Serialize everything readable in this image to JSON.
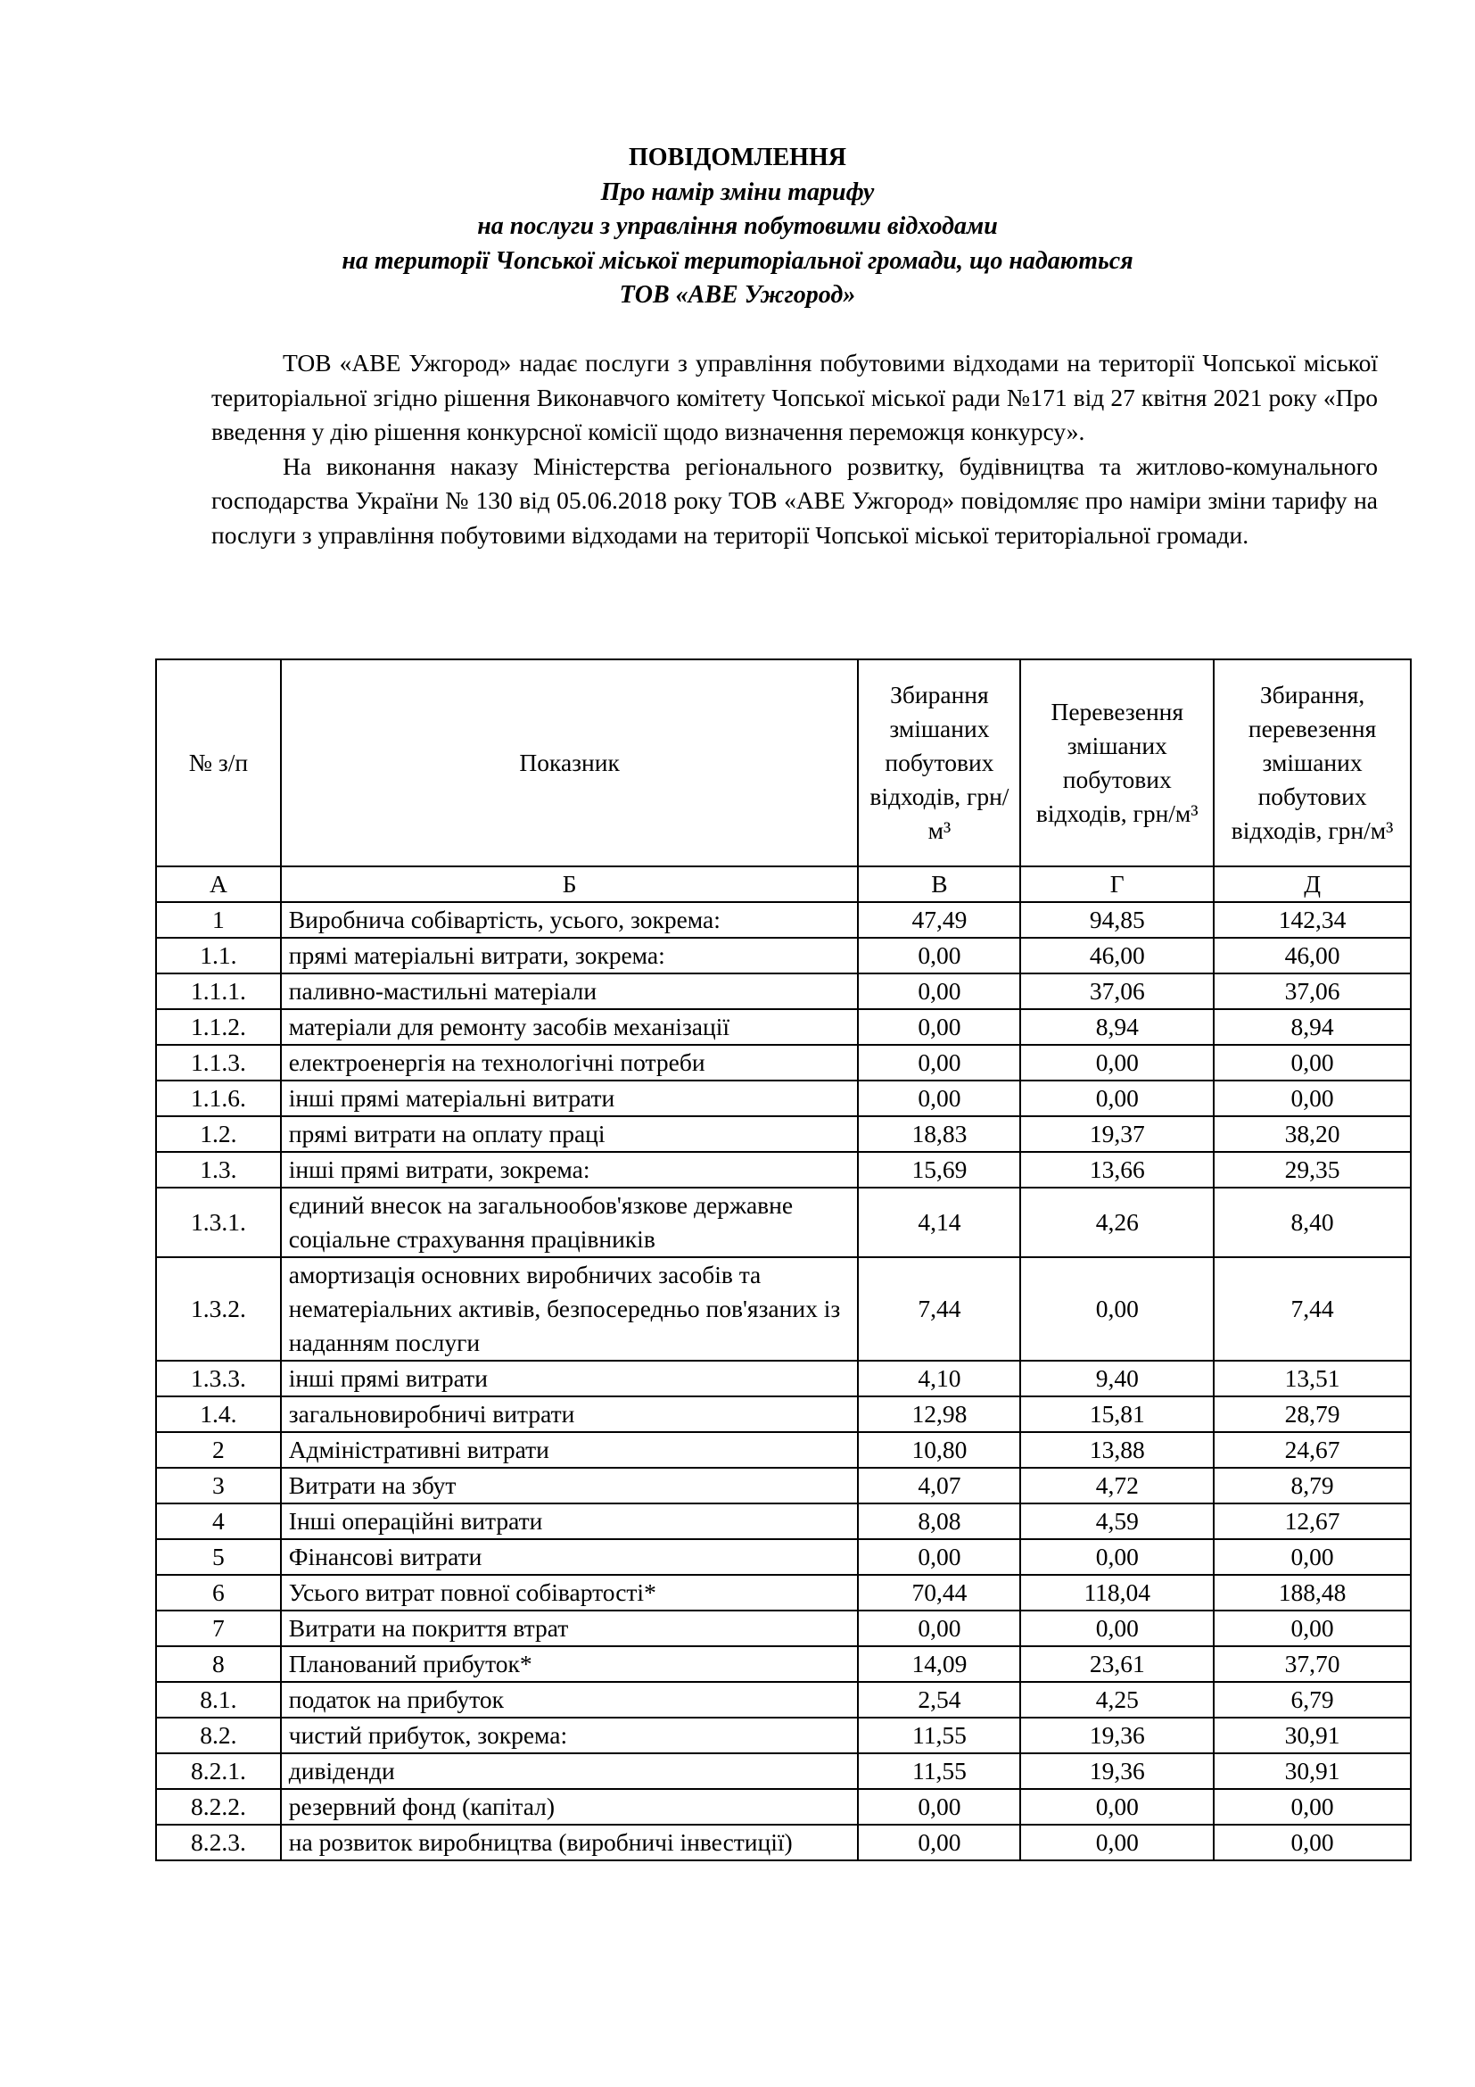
{
  "header": {
    "title": "ПОВІДОМЛЕННЯ",
    "subtitle_lines": [
      "Про намір зміни тарифу",
      "на послуги з управління побутовими відходами",
      "на території Чопської міської територіальної громади, що надаються",
      "ТОВ «АВЕ Ужгород»"
    ]
  },
  "paragraphs": [
    "ТОВ «АВЕ Ужгород» надає послуги з управління побутовими відходами на території Чопської міської територіальної  згідно рішення Виконавчого комітету Чопської міської ради №171  від 27 квітня 2021 року «Про введення у дію рішення конкурсної комісії щодо визначення переможця конкурсу».",
    "На виконання наказу Міністерства регіонального розвитку, будівництва та житлово-комунального господарства України № 130 від 05.06.2018 року ТОВ «АВЕ Ужгород» повідомляє про наміри зміни тарифу на послуги з управління побутовими відходами на території Чопської міської територіальної громади."
  ],
  "table": {
    "headers": [
      "№ з/п",
      "Показник",
      "Збирання змішаних побутових відходів, грн/м³",
      "Перевезення змішаних побутових відходів, грн/м³",
      "Збирання, перевезення змішаних побутових відходів, грн/м³"
    ],
    "letters": [
      "А",
      "Б",
      "В",
      "Г",
      "Д"
    ],
    "rows": [
      [
        "1",
        "Виробнича собівартість, усього, зокрема:",
        "47,49",
        "94,85",
        "142,34"
      ],
      [
        "1.1.",
        "прямі матеріальні витрати, зокрема:",
        "0,00",
        "46,00",
        "46,00"
      ],
      [
        "1.1.1.",
        "паливно-мастильні матеріали",
        "0,00",
        "37,06",
        "37,06"
      ],
      [
        "1.1.2.",
        "матеріали для ремонту засобів механізації",
        "0,00",
        "8,94",
        "8,94"
      ],
      [
        "1.1.3.",
        "електроенергія на технологічні потреби",
        "0,00",
        "0,00",
        "0,00"
      ],
      [
        "1.1.6.",
        "інші прямі матеріальні витрати",
        "0,00",
        "0,00",
        "0,00"
      ],
      [
        "1.2.",
        "прямі витрати на оплату праці",
        "18,83",
        "19,37",
        "38,20"
      ],
      [
        "1.3.",
        "інші прямі витрати, зокрема:",
        "15,69",
        "13,66",
        "29,35"
      ],
      [
        "1.3.1.",
        "єдиний внесок на загальнообов'язкове державне соціальне страхування працівників",
        "4,14",
        "4,26",
        "8,40"
      ],
      [
        "1.3.2.",
        "амортизація основних виробничих засобів та нематеріальних активів, безпосередньо пов'язаних із наданням послуги",
        "7,44",
        "0,00",
        "7,44"
      ],
      [
        "1.3.3.",
        "інші прямі витрати",
        "4,10",
        "9,40",
        "13,51"
      ],
      [
        "1.4.",
        "загальновиробничі витрати",
        "12,98",
        "15,81",
        "28,79"
      ],
      [
        "2",
        "Адміністративні витрати",
        "10,80",
        "13,88",
        "24,67"
      ],
      [
        "3",
        "Витрати на збут",
        "4,07",
        "4,72",
        "8,79"
      ],
      [
        "4",
        "Інші операційні витрати",
        "8,08",
        "4,59",
        "12,67"
      ],
      [
        "5",
        "Фінансові витрати",
        "0,00",
        "0,00",
        "0,00"
      ],
      [
        "6",
        "Усього витрат повної собівартості*",
        "70,44",
        "118,04",
        "188,48"
      ],
      [
        "7",
        "Витрати на покриття втрат",
        "0,00",
        "0,00",
        "0,00"
      ],
      [
        "8",
        "Плановaний прибуток*",
        "14,09",
        "23,61",
        "37,70"
      ],
      [
        "8.1.",
        "податок на прибуток",
        "2,54",
        "4,25",
        "6,79"
      ],
      [
        "8.2.",
        "чистий прибуток, зокрема:",
        "11,55",
        "19,36",
        "30,91"
      ],
      [
        "8.2.1.",
        "дивіденди",
        "11,55",
        "19,36",
        "30,91"
      ],
      [
        "8.2.2.",
        "резервний фонд (капітал)",
        "0,00",
        "0,00",
        "0,00"
      ],
      [
        "8.2.3.",
        "на розвиток виробництва (виробничі інвестиції)",
        "0,00",
        "0,00",
        "0,00"
      ]
    ]
  }
}
